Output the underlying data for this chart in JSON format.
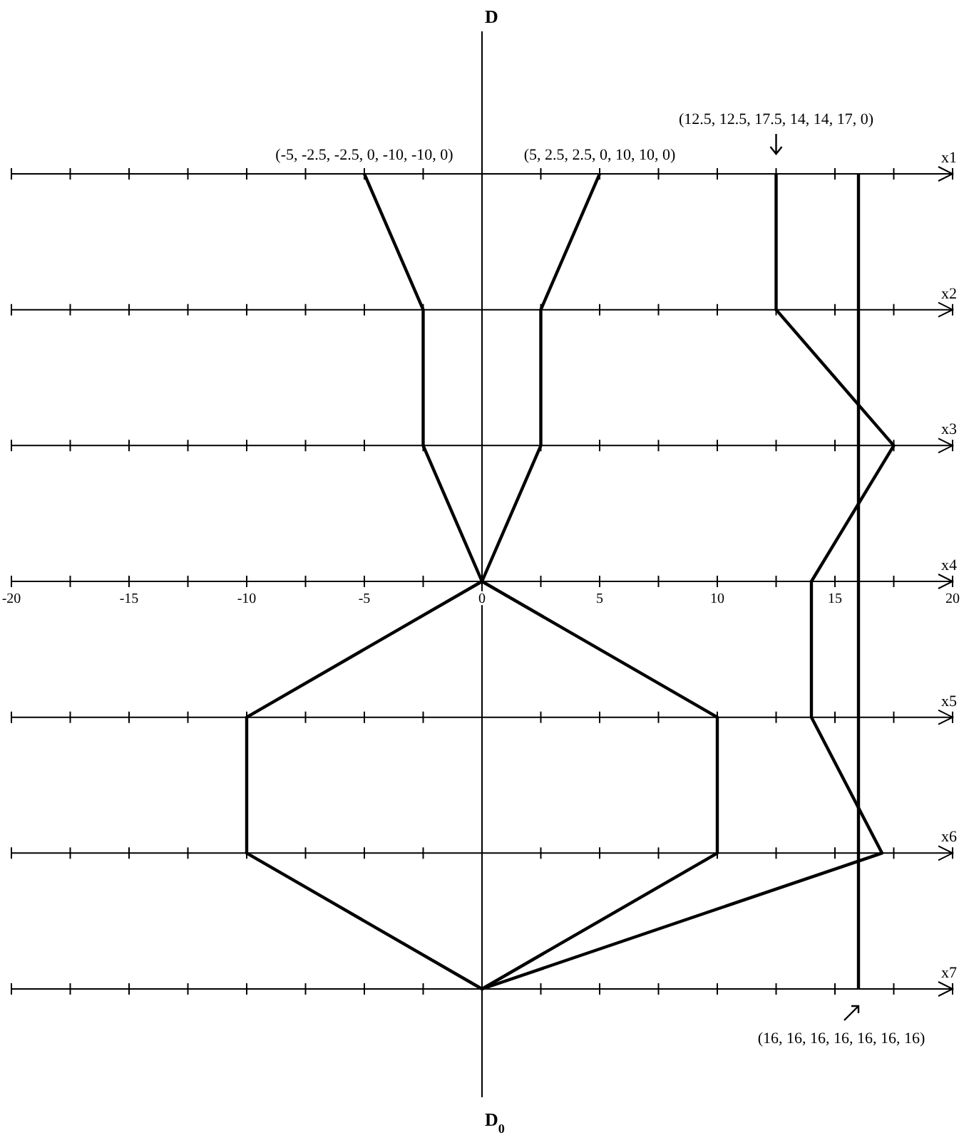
{
  "chart_data": {
    "type": "line",
    "orientation": "horizontal",
    "ylabel": "D",
    "xlabel": "D$_{0}$",
    "categories": [
      "x1",
      "x2",
      "x3",
      "x4",
      "x5",
      "x6",
      "x7"
    ],
    "xlim": [
      -20,
      20
    ],
    "xticks": [
      -20,
      -15,
      -10,
      -5,
      0,
      5,
      10,
      15,
      20
    ],
    "series": [
      {
        "color": "#000000",
        "values": [
          -5,
          -2.5,
          -2.5,
          0,
          -10,
          -10,
          0
        ]
      },
      {
        "color": "#000000",
        "values": [
          5,
          2.5,
          2.5,
          0,
          10,
          10,
          0
        ]
      },
      {
        "color": "#000000",
        "values": [
          12.5,
          12.5,
          17.5,
          14,
          14,
          17,
          0
        ]
      },
      {
        "color": "#000000",
        "values": [
          16,
          16,
          16,
          16,
          16,
          16,
          16
        ]
      }
    ],
    "annotations": [
      "(-5, -2.5, -2.5, 0, -10, -10, 0)",
      "(5, 2.5, 2.5, 0, 10, 10, 0)",
      "(12.5, 12.5, 17.5, 14, 14, 17, 0)",
      "(16, 16, 16, 16, 16, 16, 16)"
    ],
    "marker": "none",
    "line_style": "solid"
  }
}
